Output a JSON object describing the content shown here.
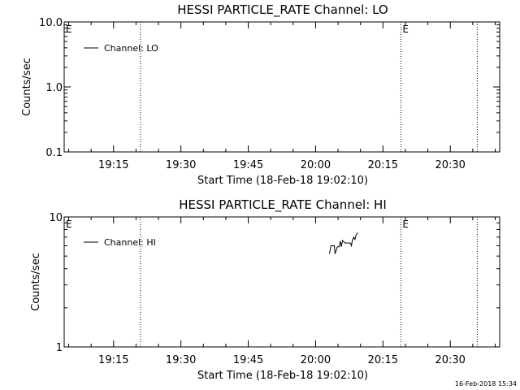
{
  "chart_data": [
    {
      "type": "line",
      "title": "HESSI PARTICLE_RATE Channel: LO",
      "xlabel": "Start Time (18-Feb-18 19:02:10)",
      "ylabel": "Counts/sec",
      "xlim": [
        "19:04",
        "20:41"
      ],
      "ylim": [
        0.1,
        10.0
      ],
      "yscale": "log",
      "x_tick_labels": [
        "19:15",
        "19:30",
        "19:45",
        "20:00",
        "20:15",
        "20:30"
      ],
      "y_tick_labels": [
        {
          "value": 0.1,
          "label": "0.1"
        },
        {
          "value": 1.0,
          "label": "1.0"
        },
        {
          "value": 10.0,
          "label": "10.0"
        }
      ],
      "legend": {
        "placement": "top-left",
        "entries": [
          "Channel: LO"
        ]
      },
      "vertical_markers": [
        "19:21",
        "20:19",
        "20:36"
      ],
      "event_markers": [
        {
          "time": "19:04",
          "label": "E"
        },
        {
          "time": "20:19",
          "label": "E"
        }
      ],
      "series": [
        {
          "name": "Channel: LO",
          "points": []
        }
      ]
    },
    {
      "type": "line",
      "title": "HESSI PARTICLE_RATE Channel: HI",
      "xlabel": "Start Time (18-Feb-18 19:02:10)",
      "ylabel": "Counts/sec",
      "xlim": [
        "19:04",
        "20:41"
      ],
      "ylim": [
        1,
        10
      ],
      "yscale": "log",
      "x_tick_labels": [
        "19:15",
        "19:30",
        "19:45",
        "20:00",
        "20:15",
        "20:30"
      ],
      "y_tick_labels": [
        {
          "value": 1,
          "label": "1"
        },
        {
          "value": 10,
          "label": "10"
        }
      ],
      "legend": {
        "placement": "top-left",
        "entries": [
          "Channel: HI"
        ]
      },
      "vertical_markers": [
        "19:21",
        "20:19",
        "20:36"
      ],
      "event_markers": [
        {
          "time": "19:04",
          "label": "E"
        },
        {
          "time": "20:19",
          "label": "E"
        }
      ],
      "series": [
        {
          "name": "Channel: HI",
          "points": [
            [
              "20:03:05",
              5.2
            ],
            [
              "20:03:25",
              6.0
            ],
            [
              "20:04:10",
              6.0
            ],
            [
              "20:04:20",
              5.2
            ],
            [
              "20:04:50",
              5.9
            ],
            [
              "20:05:15",
              5.9
            ],
            [
              "20:05:30",
              6.5
            ],
            [
              "20:05:45",
              5.9
            ],
            [
              "20:06:00",
              6.6
            ],
            [
              "20:06:35",
              6.3
            ],
            [
              "20:07:45",
              6.3
            ],
            [
              "20:08:00",
              6.0
            ],
            [
              "20:08:10",
              6.6
            ],
            [
              "20:08:30",
              7.0
            ],
            [
              "20:08:45",
              6.7
            ],
            [
              "20:09:00",
              7.2
            ],
            [
              "20:09:20",
              7.6
            ]
          ]
        }
      ]
    }
  ],
  "footer": {
    "timestamp": "16-Feb-2018 15:34"
  }
}
